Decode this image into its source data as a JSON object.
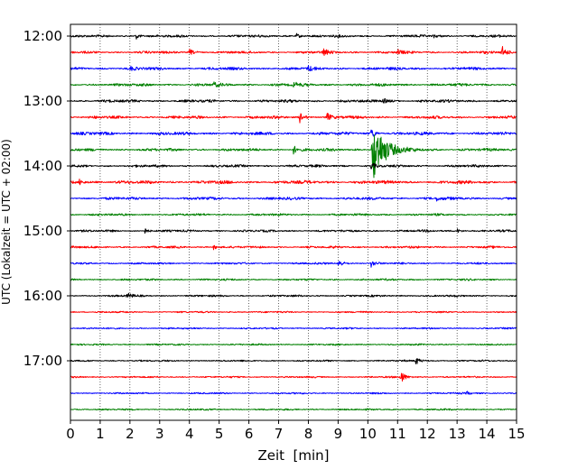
{
  "chart_data": {
    "type": "line",
    "subtype": "helicorder",
    "title": "",
    "xlabel": "Zeit  [min]",
    "ylabel": "UTC (Lokalzeit = UTC + 02:00)",
    "xlim": [
      0,
      15
    ],
    "x_ticks": [
      "0",
      "1",
      "2",
      "3",
      "4",
      "5",
      "6",
      "7",
      "8",
      "9",
      "10",
      "11",
      "12",
      "13",
      "14",
      "15"
    ],
    "y_ticks": [
      {
        "label": "12:00",
        "row": 0
      },
      {
        "label": "13:00",
        "row": 4
      },
      {
        "label": "14:00",
        "row": 8
      },
      {
        "label": "15:00",
        "row": 12
      },
      {
        "label": "16:00",
        "row": 16
      },
      {
        "label": "17:00",
        "row": 20
      }
    ],
    "row_interval_minutes": 15,
    "vertical_grid": "dotted",
    "line_colors": [
      "#000000",
      "#ff0000",
      "#0000ff",
      "#008000"
    ],
    "traces": [
      {
        "start": "12:00",
        "color": "#000000",
        "noise": 0.9,
        "events": [
          {
            "t": 2.2,
            "amp": 0.5
          },
          {
            "t": 7.6,
            "amp": 0.4
          },
          {
            "t": 12.2,
            "amp": 0.3
          }
        ]
      },
      {
        "start": "12:15",
        "color": "#ff0000",
        "noise": 0.9,
        "events": [
          {
            "t": 4.0,
            "amp": 0.5
          },
          {
            "t": 8.5,
            "amp": 0.6
          },
          {
            "t": 11.0,
            "amp": 0.4
          },
          {
            "t": 14.5,
            "amp": 1.1
          }
        ]
      },
      {
        "start": "12:30",
        "color": "#0000ff",
        "noise": 1.0,
        "events": [
          {
            "t": 2.0,
            "amp": 0.3
          },
          {
            "t": 8.0,
            "amp": 0.4
          }
        ]
      },
      {
        "start": "12:45",
        "color": "#008000",
        "noise": 1.0,
        "events": [
          {
            "t": 4.8,
            "amp": 0.4
          },
          {
            "t": 7.5,
            "amp": 0.4
          }
        ]
      },
      {
        "start": "13:00",
        "color": "#000000",
        "noise": 1.0,
        "events": [
          {
            "t": 10.5,
            "amp": 0.5
          }
        ]
      },
      {
        "start": "13:15",
        "color": "#ff0000",
        "noise": 1.0,
        "events": [
          {
            "t": 7.7,
            "amp": 0.9
          },
          {
            "t": 8.6,
            "amp": 0.8
          }
        ]
      },
      {
        "start": "13:30",
        "color": "#0000ff",
        "noise": 1.1,
        "events": [
          {
            "t": 10.1,
            "amp": 1.0
          }
        ]
      },
      {
        "start": "13:45",
        "color": "#008000",
        "noise": 1.0,
        "events": [
          {
            "t": 7.5,
            "amp": 0.7
          },
          {
            "t": 10.15,
            "amp": 5.5
          }
        ]
      },
      {
        "start": "14:00",
        "color": "#000000",
        "noise": 0.9,
        "events": [
          {
            "t": 10.1,
            "amp": 0.6
          }
        ]
      },
      {
        "start": "14:15",
        "color": "#ff0000",
        "noise": 1.2,
        "events": [
          {
            "t": 0.3,
            "amp": 0.5
          }
        ]
      },
      {
        "start": "14:30",
        "color": "#0000ff",
        "noise": 1.0,
        "events": [
          {
            "t": 12.3,
            "amp": 0.4
          }
        ]
      },
      {
        "start": "14:45",
        "color": "#008000",
        "noise": 0.8,
        "events": []
      },
      {
        "start": "15:00",
        "color": "#000000",
        "noise": 0.8,
        "events": [
          {
            "t": 2.5,
            "amp": 0.4
          },
          {
            "t": 13.0,
            "amp": 0.3
          }
        ]
      },
      {
        "start": "15:15",
        "color": "#ff0000",
        "noise": 0.8,
        "events": [
          {
            "t": 4.8,
            "amp": 0.4
          }
        ]
      },
      {
        "start": "15:30",
        "color": "#0000ff",
        "noise": 0.7,
        "events": [
          {
            "t": 9.0,
            "amp": 0.7
          },
          {
            "t": 10.1,
            "amp": 0.6
          }
        ]
      },
      {
        "start": "15:45",
        "color": "#008000",
        "noise": 0.7,
        "events": []
      },
      {
        "start": "16:00",
        "color": "#000000",
        "noise": 0.7,
        "events": [
          {
            "t": 1.9,
            "amp": 0.6
          }
        ]
      },
      {
        "start": "16:15",
        "color": "#ff0000",
        "noise": 0.6,
        "events": []
      },
      {
        "start": "16:30",
        "color": "#0000ff",
        "noise": 0.6,
        "events": []
      },
      {
        "start": "16:45",
        "color": "#008000",
        "noise": 0.6,
        "events": []
      },
      {
        "start": "17:00",
        "color": "#000000",
        "noise": 0.6,
        "events": [
          {
            "t": 11.6,
            "amp": 0.7
          }
        ]
      },
      {
        "start": "17:15",
        "color": "#ff0000",
        "noise": 0.6,
        "events": [
          {
            "t": 11.1,
            "amp": 1.2
          }
        ]
      },
      {
        "start": "17:30",
        "color": "#0000ff",
        "noise": 0.6,
        "events": [
          {
            "t": 13.3,
            "amp": 0.3
          }
        ]
      },
      {
        "start": "17:45",
        "color": "#008000",
        "noise": 0.6,
        "events": []
      }
    ]
  }
}
